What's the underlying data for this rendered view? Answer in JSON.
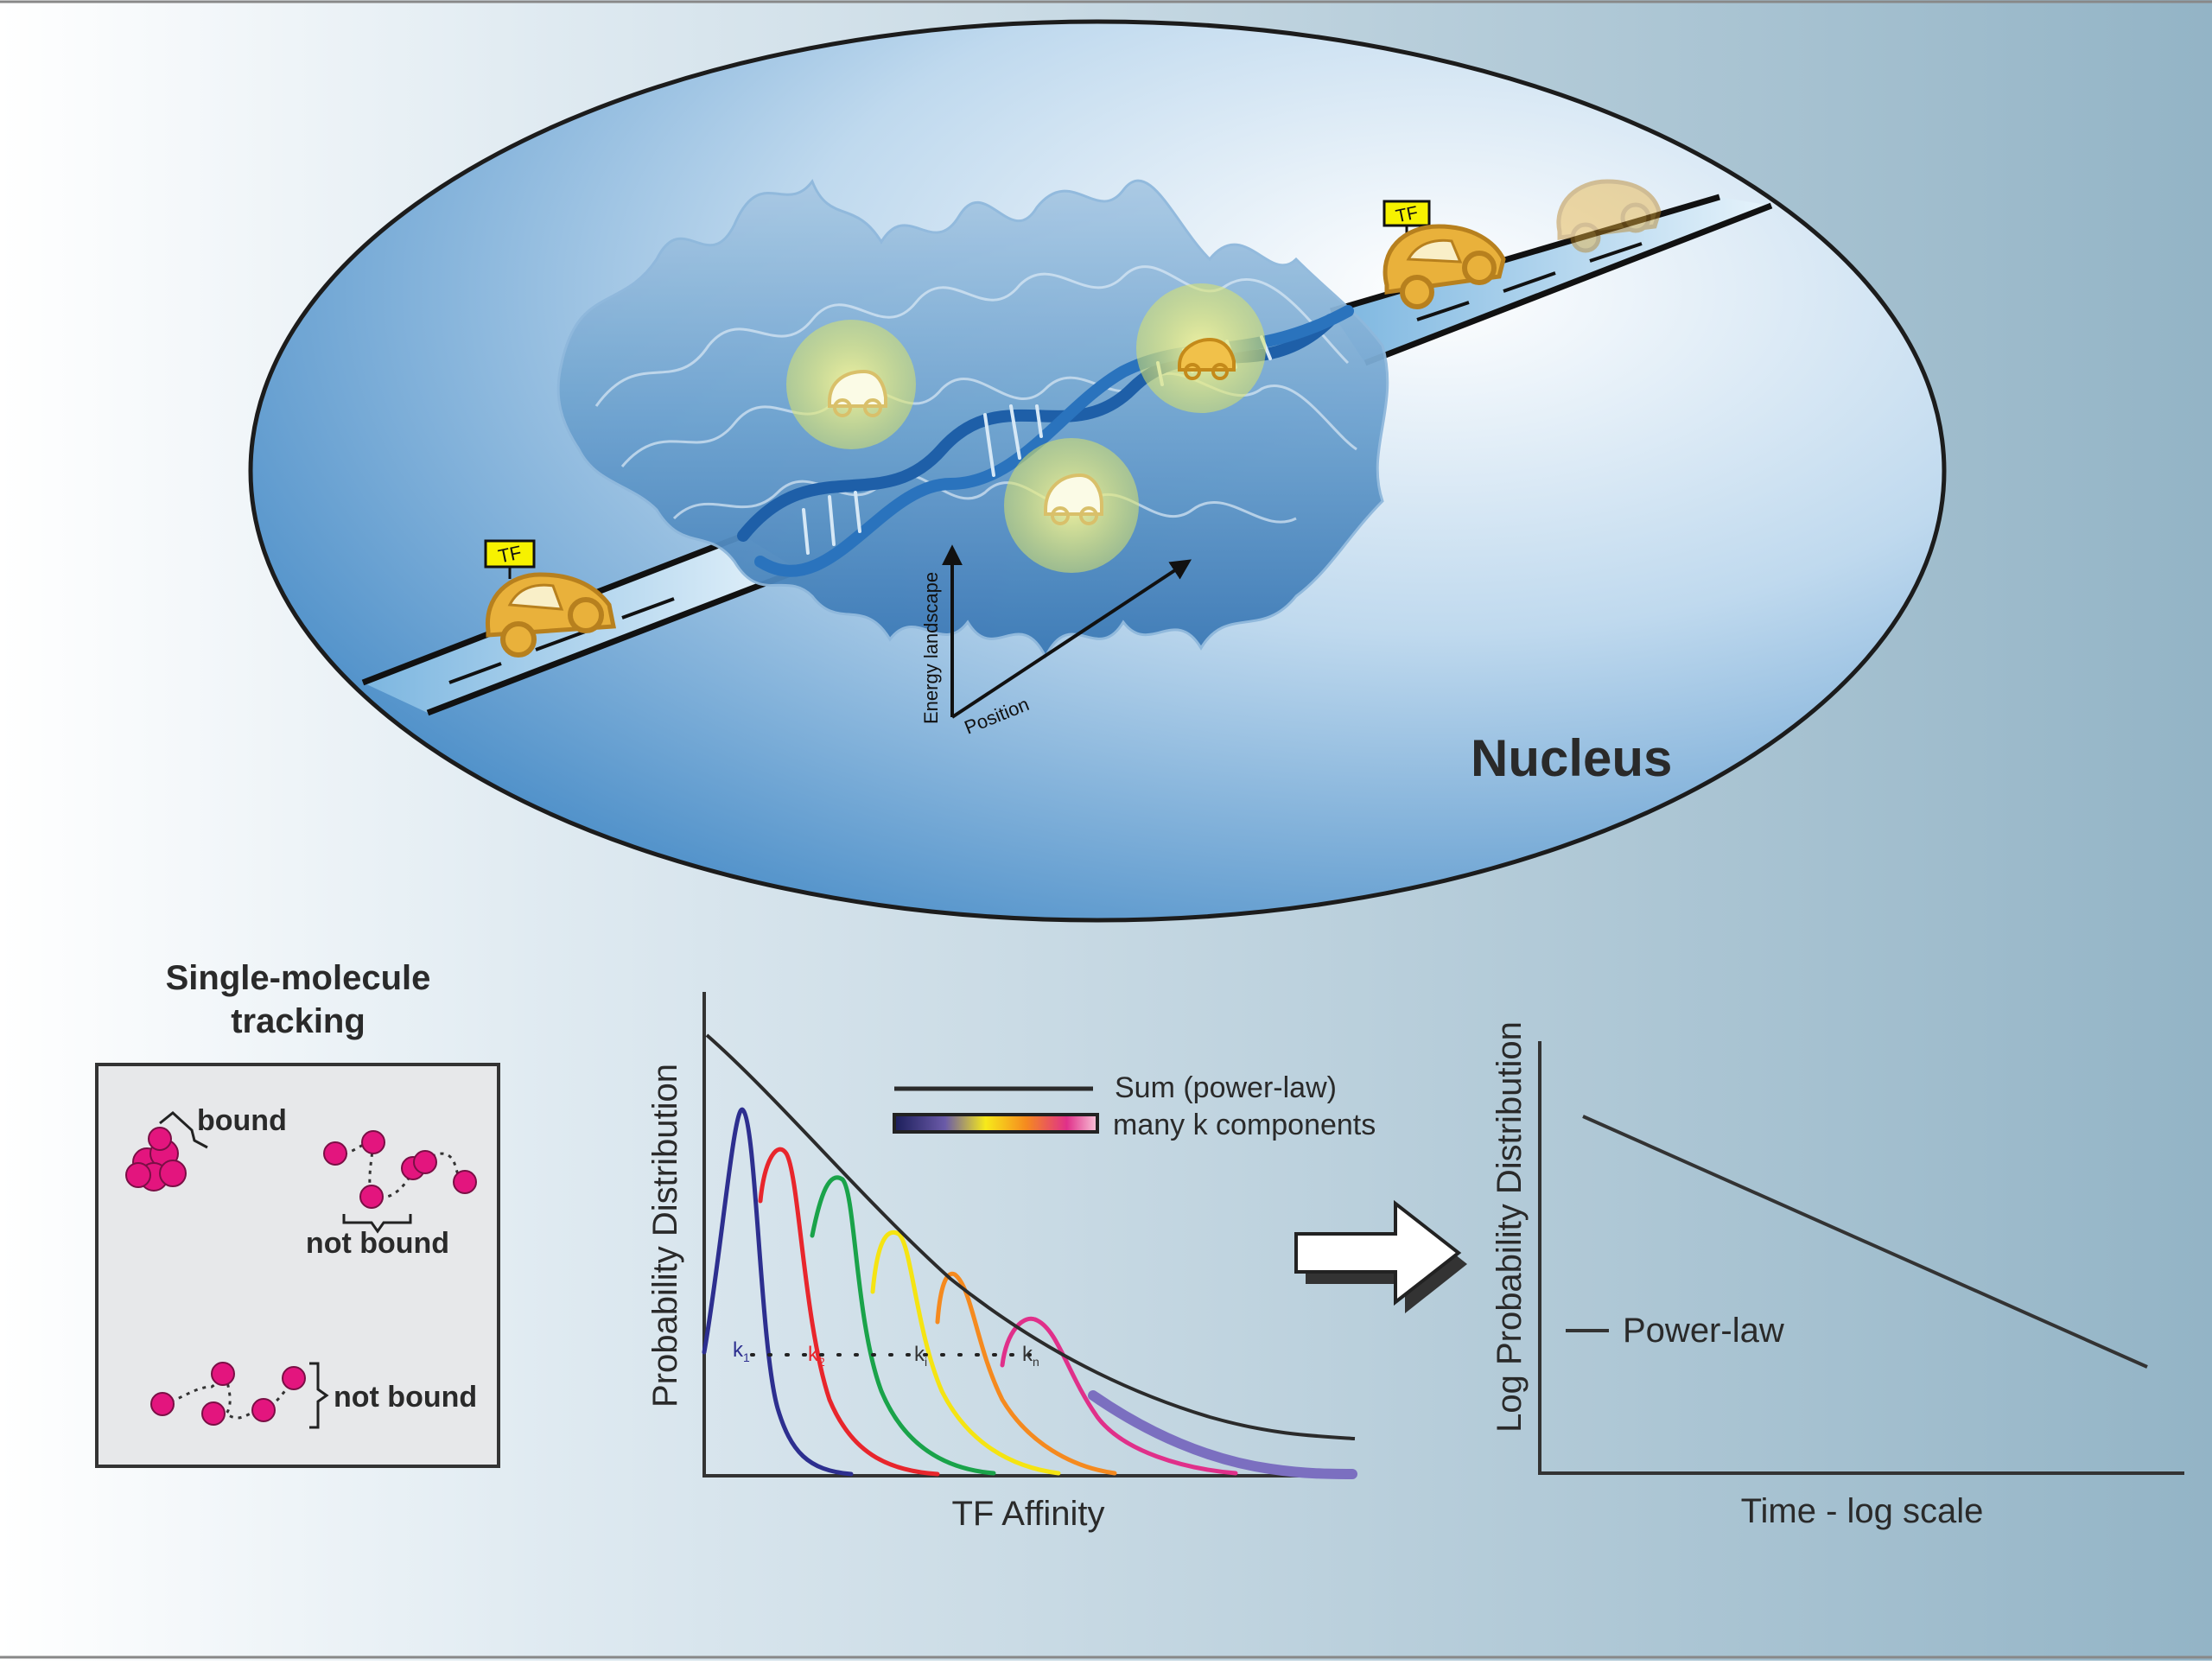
{
  "nucleus": {
    "title": "Nucleus",
    "tf_label": "TF",
    "axis_energy": "Energy landscape",
    "axis_position": "Position"
  },
  "tracking": {
    "title_line1": "Single-molecule",
    "title_line2": "tracking",
    "bound": "bound",
    "not_bound_1": "not bound",
    "not_bound_2": "not bound"
  },
  "affinity_plot": {
    "ylabel": "Probability Distribution",
    "xlabel": "TF Affinity",
    "legend_sum": "Sum (power-law)",
    "legend_components": "many k components",
    "k1": "k",
    "k1_sub": "1",
    "k2": "k",
    "k2_sub": "2",
    "ki": "k",
    "ki_sub": "i",
    "kn": "k",
    "kn_sub": "n",
    "colors": {
      "sum": "#2b2b2b",
      "components": [
        "#2d2f8f",
        "#e8262c",
        "#1aa34a",
        "#f5e412",
        "#f58a1f",
        "#e0308a",
        "#7b6fc0"
      ]
    }
  },
  "loglog_plot": {
    "ylabel": "Log Probability Distribution",
    "xlabel": "Time - log scale",
    "legend": "Power-law"
  }
}
